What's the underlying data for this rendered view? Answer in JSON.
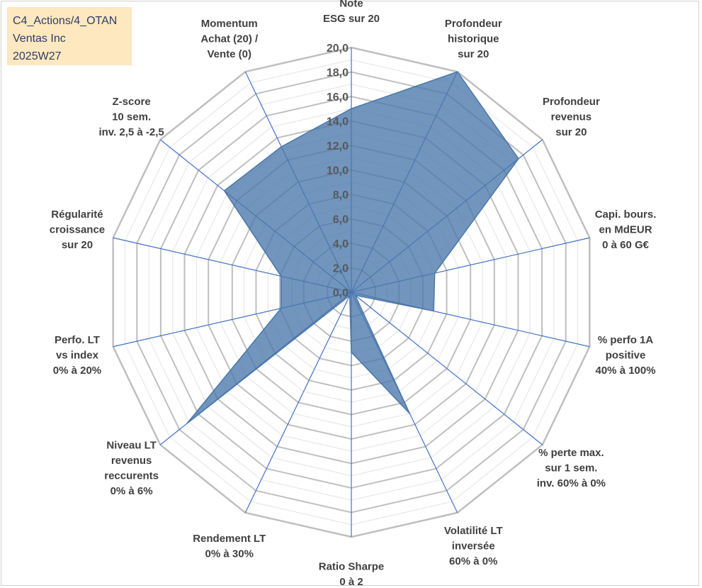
{
  "info_box": {
    "line1": "C4_Actions/4_OTAN",
    "line2": "Ventas Inc",
    "line3": "2025W27"
  },
  "chart_data": {
    "type": "radar",
    "title": "",
    "rmin": 0,
    "rmax": 20,
    "tick_step": 2,
    "tick_labels": [
      "0,0",
      "2,0",
      "4,0",
      "6,0",
      "8,0",
      "10,0",
      "12,0",
      "14,0",
      "16,0",
      "18,0",
      "20,0"
    ],
    "minor_grid_step": 1,
    "axes": [
      {
        "label": [
          "Note",
          "ESG sur 20"
        ]
      },
      {
        "label": [
          "Profondeur",
          "historique",
          "sur 20"
        ]
      },
      {
        "label": [
          "Profondeur",
          "revenus",
          "sur 20"
        ]
      },
      {
        "label": [
          "Capi. bours.",
          "en MdEUR",
          "0 à 60 G€"
        ]
      },
      {
        "label": [
          "% perfo 1A",
          "positive",
          "40% à 100%"
        ]
      },
      {
        "label": [
          "% perte max.",
          "sur 1 sem.",
          "inv. 60% à 0%"
        ]
      },
      {
        "label": [
          "Volatilité LT",
          "inversée",
          "60% à 0%"
        ]
      },
      {
        "label": [
          "Ratio Sharpe",
          "0 à 2"
        ]
      },
      {
        "label": [
          "Rendement LT",
          "0% à 30%"
        ]
      },
      {
        "label": [
          "Niveau LT",
          "revenus",
          "reccurents",
          "0% à 6%"
        ]
      },
      {
        "label": [
          "Perfo. LT",
          "vs index",
          "0% à 20%"
        ]
      },
      {
        "label": [
          "Régularité",
          "croissance",
          "sur 20"
        ]
      },
      {
        "label": [
          "Z-score",
          "10 sem.",
          "inv. 2,5 à -2,5"
        ]
      },
      {
        "label": [
          "Momentum",
          "Achat (20) /",
          "Vente (0)"
        ]
      }
    ],
    "series": [
      {
        "values": [
          15.0,
          20.0,
          17.5,
          7.0,
          6.9,
          0.4,
          11.0,
          4.9,
          0.3,
          17.2,
          5.9,
          5.9,
          13.3,
          13.2
        ],
        "color": "#4a77aa"
      }
    ],
    "grid_color": "#bfbfbf",
    "axis_color": "#4472c4"
  }
}
